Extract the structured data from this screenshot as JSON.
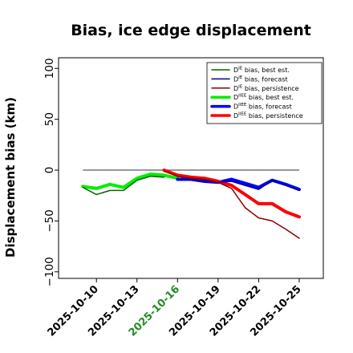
{
  "chart_data": {
    "type": "line",
    "title": "Bias, ice edge displacement",
    "ylabel": "Displacement bias (km)",
    "xlabel": "",
    "ylim": [
      -107,
      108
    ],
    "xlim": [
      "2025-10-08",
      "2025-10-25"
    ],
    "grid": false,
    "legend_position": "top-right",
    "yticks": [
      100,
      50,
      0,
      -50,
      -100
    ],
    "yticklabels": [
      "100",
      "50",
      "0",
      "−50",
      "−100"
    ],
    "xticks": [
      "2025-10-10",
      "2025-10-13",
      "2025-10-16",
      "2025-10-19",
      "2025-10-22",
      "2025-10-25"
    ],
    "highlight_xtick": "2025-10-16",
    "zero_line": {
      "start": "2025-10-09",
      "end": "2025-10-25",
      "value": 0,
      "color": "#777777"
    },
    "series": [
      {
        "label_main": "D",
        "label_sup": "IE",
        "label_rest": " bias, best est.",
        "color": "#006400",
        "width": 1.5,
        "x": [
          "2025-10-09",
          "2025-10-10",
          "2025-10-11",
          "2025-10-12",
          "2025-10-13",
          "2025-10-14",
          "2025-10-15"
        ],
        "y": [
          -17,
          -24,
          -20,
          -20,
          -10,
          -6,
          -7
        ]
      },
      {
        "label_main": "D",
        "label_sup": "IE",
        "label_rest": " bias, forecast",
        "color": "#00008b",
        "width": 1.5,
        "x": [
          "2025-10-16",
          "2025-10-17",
          "2025-10-18",
          "2025-10-19",
          "2025-10-20",
          "2025-10-21",
          "2025-10-22",
          "2025-10-23",
          "2025-10-24",
          "2025-10-25"
        ],
        "y": [
          -9,
          -9,
          -11,
          -12,
          -11,
          -15,
          -19,
          -10,
          -15,
          -20
        ]
      },
      {
        "label_main": "D",
        "label_sup": "IE",
        "label_rest": " bias, persistence",
        "color": "#8b0000",
        "width": 1.5,
        "x": [
          "2025-10-15",
          "2025-10-16",
          "2025-10-17",
          "2025-10-18",
          "2025-10-19",
          "2025-10-20",
          "2025-10-21",
          "2025-10-22",
          "2025-10-23",
          "2025-10-24",
          "2025-10-25"
        ],
        "y": [
          -1,
          -6,
          -8,
          -9,
          -12,
          -18,
          -37,
          -47,
          -50,
          -58,
          -67
        ]
      },
      {
        "label_main": "D",
        "label_sup": "IIEE",
        "label_rest": " bias, best est.",
        "color": "#00ee00",
        "width": 4,
        "x": [
          "2025-10-09",
          "2025-10-10",
          "2025-10-11",
          "2025-10-12",
          "2025-10-13",
          "2025-10-14",
          "2025-10-15",
          "2025-10-16"
        ],
        "y": [
          -16,
          -18,
          -14,
          -17,
          -8,
          -4,
          -5,
          -8
        ]
      },
      {
        "label_main": "D",
        "label_sup": "IIEE",
        "label_rest": " bias, forecast",
        "color": "#0000ff",
        "width": 4,
        "x": [
          "2025-10-16",
          "2025-10-17",
          "2025-10-18",
          "2025-10-19",
          "2025-10-20",
          "2025-10-21",
          "2025-10-22",
          "2025-10-23",
          "2025-10-24",
          "2025-10-25"
        ],
        "y": [
          -9,
          -9,
          -11,
          -12,
          -9,
          -13,
          -17,
          -10,
          -14,
          -19
        ]
      },
      {
        "label_main": "D",
        "label_sup": "IIEE",
        "label_rest": " bias, persistence",
        "color": "#ff0000",
        "width": 4,
        "x": [
          "2025-10-15",
          "2025-10-16",
          "2025-10-17",
          "2025-10-18",
          "2025-10-19",
          "2025-10-20",
          "2025-10-21",
          "2025-10-22",
          "2025-10-23",
          "2025-10-24",
          "2025-10-25"
        ],
        "y": [
          0,
          -5,
          -7,
          -8,
          -11,
          -15,
          -24,
          -33,
          -33,
          -41,
          -46
        ]
      }
    ]
  }
}
